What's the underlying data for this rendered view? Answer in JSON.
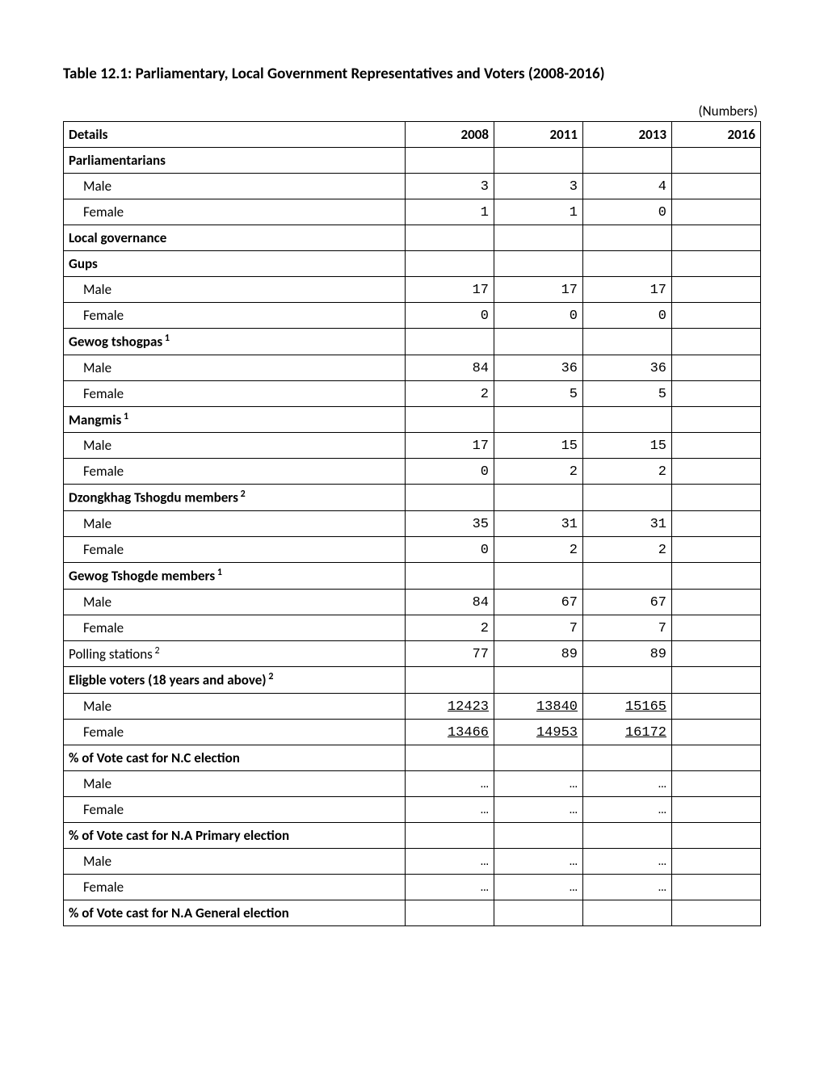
{
  "title": "Table 12.1: Parliamentary, Local Government Representatives and Voters (2008-2016)",
  "units_label": "(Numbers)",
  "columns": {
    "details": "Details",
    "y2008": "2008",
    "y2011": "2011",
    "y2013": "2013",
    "y2016": "2016"
  },
  "rows": [
    {
      "label": "Parliamentarians",
      "type": "section",
      "sup": "",
      "v": [
        "",
        "",
        "",
        ""
      ]
    },
    {
      "label": "Male",
      "type": "indent",
      "sup": "",
      "v": [
        "3",
        "3",
        "4",
        ""
      ]
    },
    {
      "label": "Female",
      "type": "indent",
      "sup": "",
      "v": [
        "1",
        "1",
        "0",
        ""
      ]
    },
    {
      "label": "Local governance",
      "type": "section",
      "sup": "",
      "v": [
        "",
        "",
        "",
        ""
      ]
    },
    {
      "label": "Gups",
      "type": "section",
      "sup": "",
      "v": [
        "",
        "",
        "",
        ""
      ]
    },
    {
      "label": "Male",
      "type": "indent",
      "sup": "",
      "v": [
        "17",
        "17",
        "17",
        ""
      ]
    },
    {
      "label": "Female",
      "type": "indent",
      "sup": "",
      "v": [
        "0",
        "0",
        "0",
        ""
      ]
    },
    {
      "label": "Gewog tshogpas",
      "type": "section",
      "sup": "1",
      "v": [
        "",
        "",
        "",
        ""
      ]
    },
    {
      "label": "Male",
      "type": "indent",
      "sup": "",
      "v": [
        "84",
        "36",
        "36",
        ""
      ]
    },
    {
      "label": "Female",
      "type": "indent",
      "sup": "",
      "v": [
        "2",
        "5",
        "5",
        ""
      ]
    },
    {
      "label": "Mangmis",
      "type": "section",
      "sup": "1",
      "v": [
        "",
        "",
        "",
        ""
      ]
    },
    {
      "label": "Male",
      "type": "indent",
      "sup": "",
      "v": [
        "17",
        "15",
        "15",
        ""
      ]
    },
    {
      "label": "Female",
      "type": "indent",
      "sup": "",
      "v": [
        "0",
        "2",
        "2",
        ""
      ]
    },
    {
      "label": "Dzongkhag Tshogdu members",
      "type": "section",
      "sup": "2",
      "v": [
        "",
        "",
        "",
        ""
      ]
    },
    {
      "label": "Male",
      "type": "indent",
      "sup": "",
      "v": [
        "35",
        "31",
        "31",
        ""
      ]
    },
    {
      "label": "Female",
      "type": "indent",
      "sup": "",
      "v": [
        "0",
        "2",
        "2",
        ""
      ]
    },
    {
      "label": "Gewog Tshogde members",
      "type": "section",
      "sup": "1",
      "v": [
        "",
        "",
        "",
        ""
      ]
    },
    {
      "label": "Male",
      "type": "indent",
      "sup": "",
      "v": [
        "84",
        "67",
        "67",
        ""
      ]
    },
    {
      "label": "Female",
      "type": "indent",
      "sup": "",
      "v": [
        "2",
        "7",
        "7",
        ""
      ]
    },
    {
      "label": "Polling stations",
      "type": "plain",
      "sup": "2",
      "v": [
        "77",
        "89",
        "89",
        ""
      ]
    },
    {
      "label": "Eligble voters (18 years and above)",
      "type": "section",
      "sup": "2",
      "v": [
        "",
        "",
        "",
        ""
      ]
    },
    {
      "label": "Male",
      "type": "indent",
      "sup": "",
      "underline": true,
      "v": [
        "12423",
        "13840",
        "15165",
        ""
      ]
    },
    {
      "label": "Female",
      "type": "indent",
      "sup": "",
      "underline": true,
      "v": [
        "13466",
        "14953",
        "16172",
        ""
      ]
    },
    {
      "label": "% of Vote cast for N.C election",
      "type": "section",
      "sup": "",
      "v": [
        "",
        "",
        "",
        ""
      ]
    },
    {
      "label": "Male",
      "type": "indent",
      "sup": "",
      "v": [
        "…",
        "…",
        "…",
        ""
      ]
    },
    {
      "label": "Female",
      "type": "indent",
      "sup": "",
      "v": [
        "…",
        "…",
        "…",
        ""
      ]
    },
    {
      "label": "% of Vote cast for N.A Primary election",
      "type": "section",
      "sup": "",
      "v": [
        "",
        "",
        "",
        ""
      ]
    },
    {
      "label": "Male",
      "type": "indent",
      "sup": "",
      "v": [
        "…",
        "…",
        "…",
        ""
      ]
    },
    {
      "label": "Female",
      "type": "indent",
      "sup": "",
      "v": [
        "…",
        "…",
        "…",
        ""
      ]
    },
    {
      "label": "% of Vote cast for N.A General election",
      "type": "section",
      "sup": "",
      "v": [
        "",
        "",
        "",
        ""
      ]
    }
  ],
  "styling": {
    "background_color": "#ffffff",
    "border_color": "#000000",
    "title_fontsize": 19,
    "cell_fontsize": 17,
    "title_fontweight": "bold",
    "num_font": "Courier New",
    "label_font": "Calibri",
    "col_widths": {
      "details": "auto",
      "year": 110
    }
  }
}
